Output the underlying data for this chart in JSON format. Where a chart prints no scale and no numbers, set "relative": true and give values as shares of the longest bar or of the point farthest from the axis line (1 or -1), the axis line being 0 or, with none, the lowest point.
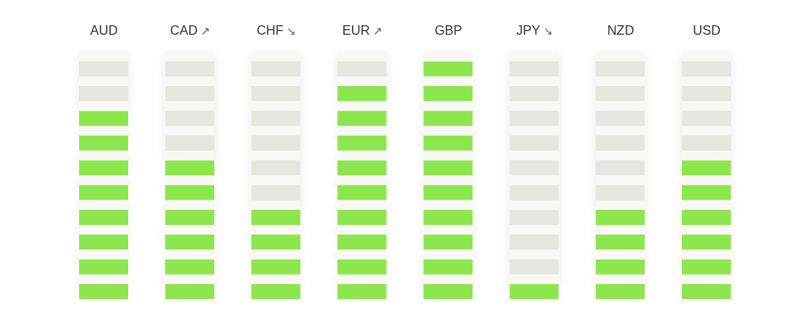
{
  "chart_data": {
    "type": "bar",
    "relative": true,
    "categories": [
      "AUD",
      "CAD ↗",
      "CHF ↘",
      "EUR ↗",
      "GBP",
      "JPY ↘",
      "NZD",
      "USD"
    ],
    "values": [
      0.792,
      0.584,
      0.375,
      0.896,
      1,
      0.063,
      0.375,
      0.584
    ],
    "color": "#8ee64e"
  }
}
